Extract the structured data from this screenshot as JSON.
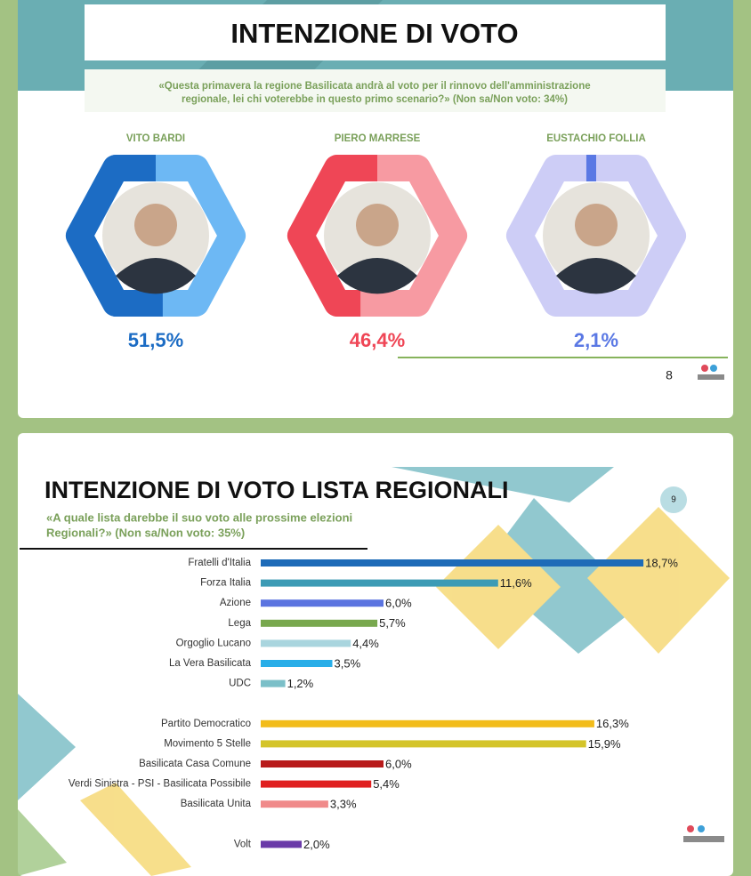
{
  "chart_data": [
    {
      "type": "ring",
      "title": "INTENZIONE DI VOTO",
      "subtitle": [
        "«Questa primavera la regione Basilicata andrà al voto per il rinnovo dell'amministrazione",
        "regionale, lei chi voterebbe in questo primo scenario?» (Non sa/Non voto: 34%)"
      ],
      "categories": [
        "VITO BARDI",
        "PIERO MARRESE",
        "EUSTACHIO FOLLIA"
      ],
      "values": [
        51.5,
        46.4,
        2.1
      ],
      "value_labels": [
        "51,5%",
        "46,4%",
        "2,1%"
      ],
      "colors": [
        "#1c6cc4",
        "#ef4656",
        "#5a78e4"
      ],
      "track_colors": [
        "#6db8f4",
        "#f79aa2",
        "#cdcdf6"
      ],
      "page_number": "8"
    },
    {
      "type": "hbar",
      "title": "INTENZIONE DI VOTO LISTA REGIONALI",
      "subtitle": [
        "«A quale lista darebbe il suo voto alle prossime elezioni",
        "Regionali?» (Non sa/Non voto: 35%)"
      ],
      "page_number": "9",
      "groups": [
        {
          "categories": [
            "Fratelli d'Italia",
            "Forza Italia",
            "Azione",
            "Lega",
            "Orgoglio Lucano",
            "La Vera Basilicata",
            "UDC"
          ],
          "values": [
            18.7,
            11.6,
            6.0,
            5.7,
            4.4,
            3.5,
            1.2
          ],
          "value_labels": [
            "18,7%",
            "11,6%",
            "6,0%",
            "5,7%",
            "4,4%",
            "3,5%",
            "1,2%"
          ],
          "colors": [
            "#1e6bb8",
            "#3d9bb5",
            "#5b74e0",
            "#78a84e",
            "#a9d5de",
            "#29aee8",
            "#7bbfc8"
          ]
        },
        {
          "categories": [
            "Partito Democratico",
            "Movimento 5 Stelle",
            "Basilicata Casa Comune",
            "Verdi Sinistra - PSI - Basilicata Possibile",
            "Basilicata Unita"
          ],
          "values": [
            16.3,
            15.9,
            6.0,
            5.4,
            3.3
          ],
          "value_labels": [
            "16,3%",
            "15,9%",
            "6,0%",
            "5,4%",
            "3,3%"
          ],
          "colors": [
            "#f2bc1b",
            "#d4c42a",
            "#b81b1b",
            "#e02020",
            "#f08a8a"
          ]
        },
        {
          "categories": [
            "Volt"
          ],
          "values": [
            2.0
          ],
          "value_labels": [
            "2,0%"
          ],
          "colors": [
            "#6a3aa8"
          ]
        }
      ]
    }
  ]
}
